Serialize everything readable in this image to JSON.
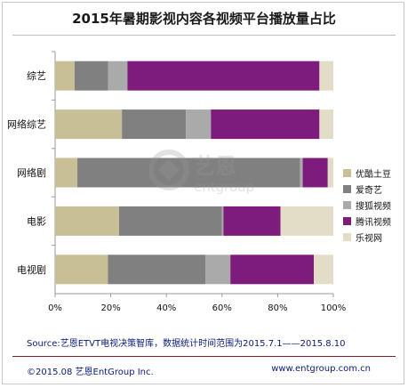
{
  "chart_data": {
    "type": "bar",
    "orientation": "horizontal",
    "stacked": "percent",
    "title": "2015年暑期影视内容各视频平台播放量占比",
    "categories": [
      "综艺",
      "网络综艺",
      "网络剧",
      "电影",
      "电视剧"
    ],
    "xlim": [
      0,
      100
    ],
    "x_ticks": [
      "0%",
      "20%",
      "40%",
      "60%",
      "80%",
      "100%"
    ],
    "grid": false,
    "legend_position": "right",
    "series": [
      {
        "name": "优酷土豆",
        "color": "#c8bf96",
        "values": [
          7,
          24,
          8,
          23,
          19
        ]
      },
      {
        "name": "爱奇艺",
        "color": "#808080",
        "values": [
          12,
          23,
          80,
          37,
          35
        ]
      },
      {
        "name": "搜狐视频",
        "color": "#aaaaaa",
        "values": [
          7,
          9,
          1,
          0.5,
          9
        ]
      },
      {
        "name": "腾讯视频",
        "color": "#7d1c7c",
        "values": [
          69,
          39,
          9,
          20.5,
          30
        ]
      },
      {
        "name": "乐视网",
        "color": "#e3dcc6",
        "values": [
          5,
          5,
          2,
          19,
          7
        ]
      }
    ]
  },
  "source": "Source:艺恩ETVT电视决策智库，数据统计时间范围为2015.7.1——2015.8.10",
  "footer": {
    "copyright": "©2015.08 艺恩EntGroup Inc.",
    "website": "www.entgroup.com.cn"
  },
  "watermark": {
    "brand": "艺恩",
    "sub": "entgroup"
  }
}
